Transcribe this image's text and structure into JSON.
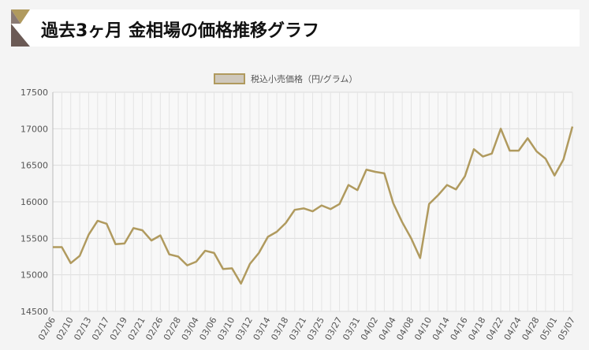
{
  "header": {
    "title": "過去3ヶ月 金相場の価格推移グラフ"
  },
  "chart_data": {
    "type": "line",
    "categories": [
      "02/06",
      null,
      "02/10",
      null,
      "02/13",
      null,
      "02/17",
      null,
      "02/19",
      null,
      "02/21",
      null,
      "02/26",
      null,
      "02/28",
      null,
      "03/04",
      null,
      "03/06",
      null,
      "03/10",
      null,
      "03/12",
      null,
      "03/14",
      null,
      "03/18",
      null,
      "03/21",
      null,
      "03/25",
      null,
      "03/27",
      null,
      "03/31",
      null,
      "04/02",
      null,
      "04/04",
      null,
      "04/08",
      null,
      "04/10",
      null,
      "04/14",
      null,
      "04/16",
      null,
      "04/18",
      null,
      "04/22",
      null,
      "04/24",
      null,
      "04/28",
      null,
      "05/01",
      null,
      "05/07"
    ],
    "series": [
      {
        "name": "税込小売価格（円/グラム）",
        "color": "#b09a5e",
        "values": [
          15380,
          15380,
          15160,
          15260,
          15550,
          15740,
          15700,
          15420,
          15430,
          15640,
          15610,
          15470,
          15540,
          15280,
          15250,
          15130,
          15180,
          15330,
          15300,
          15080,
          15090,
          14880,
          15150,
          15300,
          15520,
          15590,
          15710,
          15890,
          15910,
          15870,
          15950,
          15900,
          15970,
          16230,
          16160,
          16440,
          16410,
          16390,
          15980,
          15720,
          15500,
          15230,
          15970,
          16090,
          16230,
          16170,
          16350,
          16720,
          16620,
          16660,
          17000,
          16700,
          16700,
          16870,
          16690,
          16590,
          16360,
          16580,
          17030
        ]
      }
    ],
    "ylim": [
      14500,
      17500
    ],
    "yticks": [
      14500,
      15000,
      15500,
      16000,
      16500,
      17000,
      17500
    ],
    "grid": true,
    "legend": "top"
  }
}
